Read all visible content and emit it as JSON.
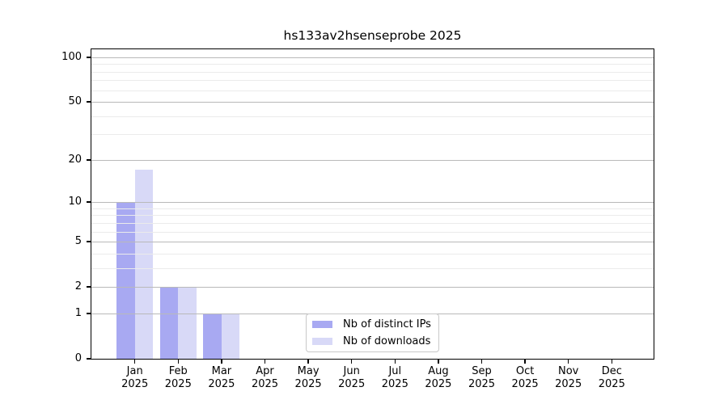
{
  "title": "hs133av2hsenseprobe 2025",
  "chart_data": {
    "type": "bar",
    "title": "hs133av2hsenseprobe 2025",
    "categories": [
      "Jan 2025",
      "Feb 2025",
      "Mar 2025",
      "Apr 2025",
      "May 2025",
      "Jun 2025",
      "Jul 2025",
      "Aug 2025",
      "Sep 2025",
      "Oct 2025",
      "Nov 2025",
      "Dec 2025"
    ],
    "series": [
      {
        "name": "Nb of distinct IPs",
        "color": "#a8a9f2",
        "values": [
          10,
          2,
          1,
          0,
          0,
          0,
          0,
          0,
          0,
          0,
          0,
          0
        ]
      },
      {
        "name": "Nb of downloads",
        "color": "#d8d9f7",
        "values": [
          17,
          2,
          1,
          0,
          0,
          0,
          0,
          0,
          0,
          0,
          0,
          0
        ]
      }
    ],
    "xlabel": "",
    "ylabel": "",
    "yscale": "log1p",
    "ylim": [
      0,
      115
    ],
    "yticks": [
      0,
      1,
      2,
      5,
      10,
      20,
      50,
      100
    ],
    "yminorticks": [
      3,
      4,
      6,
      7,
      8,
      9,
      30,
      40,
      60,
      70,
      80,
      90
    ],
    "grid": true,
    "legend_position": "lower center",
    "colors": {
      "major_grid": "#b9b9b9",
      "minor_grid": "#ebebeb",
      "frame": "#000000",
      "background": "#ffffff"
    }
  }
}
